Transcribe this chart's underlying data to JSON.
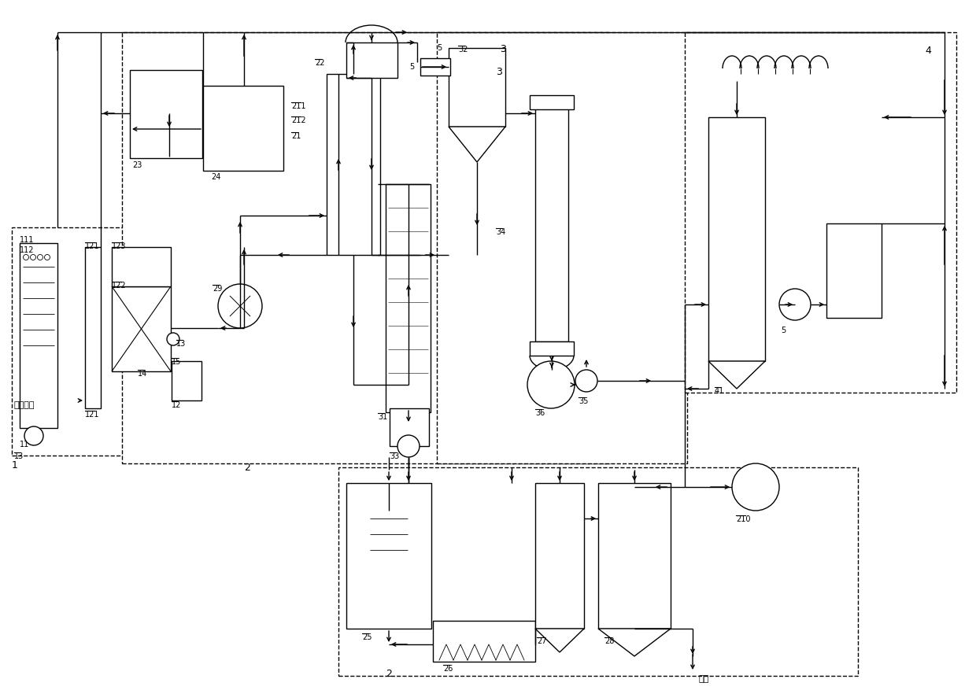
{
  "bg_color": "#ffffff",
  "line_color": "#000000",
  "fig_width": 12.4,
  "fig_height": 8.78,
  "dpi": 100,
  "lw": 1.0,
  "fs": 7.0
}
